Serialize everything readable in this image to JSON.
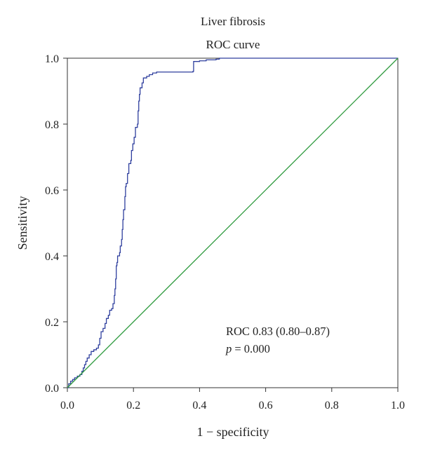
{
  "chart_data": {
    "type": "line",
    "title": "Liver fibrosis",
    "subtitle": "ROC curve",
    "xlabel": "1 − specificity",
    "ylabel": "Sensitivity",
    "xlim": [
      0,
      1
    ],
    "ylim": [
      0,
      1
    ],
    "xticks": [
      "0.0",
      "0.2",
      "0.4",
      "0.6",
      "0.8",
      "1.0"
    ],
    "yticks": [
      "0.0",
      "0.2",
      "0.4",
      "0.6",
      "0.8",
      "1.0"
    ],
    "grid": false,
    "annotation": {
      "line1": "ROC 0.83 (0.80–0.87)",
      "p_symbol": "p",
      "p_rest": " = 0.000"
    },
    "series": [
      {
        "color": "#2f3f9e",
        "step": true,
        "points": [
          [
            0.0,
            0.0
          ],
          [
            0.004,
            0.012
          ],
          [
            0.01,
            0.02
          ],
          [
            0.016,
            0.025
          ],
          [
            0.022,
            0.03
          ],
          [
            0.03,
            0.035
          ],
          [
            0.038,
            0.04
          ],
          [
            0.044,
            0.05
          ],
          [
            0.048,
            0.06
          ],
          [
            0.052,
            0.07
          ],
          [
            0.056,
            0.08
          ],
          [
            0.06,
            0.09
          ],
          [
            0.066,
            0.1
          ],
          [
            0.072,
            0.11
          ],
          [
            0.08,
            0.115
          ],
          [
            0.088,
            0.12
          ],
          [
            0.094,
            0.13
          ],
          [
            0.098,
            0.15
          ],
          [
            0.102,
            0.17
          ],
          [
            0.108,
            0.18
          ],
          [
            0.114,
            0.195
          ],
          [
            0.118,
            0.21
          ],
          [
            0.124,
            0.22
          ],
          [
            0.128,
            0.235
          ],
          [
            0.134,
            0.24
          ],
          [
            0.138,
            0.255
          ],
          [
            0.142,
            0.28
          ],
          [
            0.144,
            0.3
          ],
          [
            0.146,
            0.33
          ],
          [
            0.148,
            0.37
          ],
          [
            0.15,
            0.38
          ],
          [
            0.152,
            0.4
          ],
          [
            0.158,
            0.41
          ],
          [
            0.16,
            0.43
          ],
          [
            0.164,
            0.45
          ],
          [
            0.166,
            0.48
          ],
          [
            0.168,
            0.51
          ],
          [
            0.17,
            0.54
          ],
          [
            0.174,
            0.58
          ],
          [
            0.176,
            0.61
          ],
          [
            0.178,
            0.62
          ],
          [
            0.182,
            0.65
          ],
          [
            0.186,
            0.68
          ],
          [
            0.192,
            0.69
          ],
          [
            0.194,
            0.72
          ],
          [
            0.198,
            0.74
          ],
          [
            0.202,
            0.76
          ],
          [
            0.206,
            0.79
          ],
          [
            0.212,
            0.8
          ],
          [
            0.214,
            0.84
          ],
          [
            0.216,
            0.87
          ],
          [
            0.218,
            0.89
          ],
          [
            0.22,
            0.91
          ],
          [
            0.226,
            0.925
          ],
          [
            0.23,
            0.94
          ],
          [
            0.24,
            0.945
          ],
          [
            0.248,
            0.95
          ],
          [
            0.258,
            0.955
          ],
          [
            0.27,
            0.958
          ],
          [
            0.3,
            0.958
          ],
          [
            0.34,
            0.958
          ],
          [
            0.38,
            0.96
          ],
          [
            0.382,
            0.99
          ],
          [
            0.4,
            0.992
          ],
          [
            0.42,
            0.995
          ],
          [
            0.45,
            0.997
          ],
          [
            0.46,
            1.0
          ],
          [
            1.0,
            1.0
          ]
        ]
      },
      {
        "color": "#2e9a3e",
        "step": false,
        "points": [
          [
            0,
            0
          ],
          [
            1,
            1
          ]
        ]
      }
    ]
  }
}
